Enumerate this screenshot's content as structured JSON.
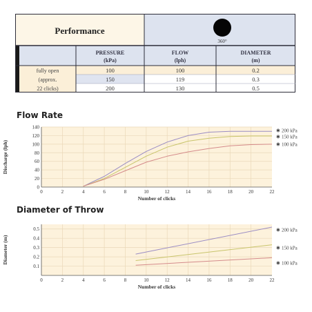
{
  "table": {
    "title": "Performance",
    "angle_label": "360°",
    "headers": [
      {
        "top": "",
        "bottom": ""
      },
      {
        "top": "PRESSURE",
        "bottom": "(kPa)"
      },
      {
        "top": "FLOW",
        "bottom": "(lph)"
      },
      {
        "top": "DIAMETER",
        "bottom": "(m)"
      }
    ],
    "row_label": [
      "fully open",
      "(approx.",
      "22 clicks)"
    ],
    "rows": [
      [
        "100",
        "100",
        "0.2"
      ],
      [
        "150",
        "119",
        "0.3"
      ],
      [
        "200",
        "130",
        "0.5"
      ]
    ],
    "colors": {
      "header_bg": "#dde3ef",
      "row_pale": "#fbefd8",
      "row_light": "#fdf6e7",
      "blue_cell": "#dfe4f0",
      "border": "#2c2c38"
    }
  },
  "chart_data": [
    {
      "type": "line",
      "title": "Flow Rate",
      "xlabel": "Number of clicks",
      "ylabel": "Discharge (lph)",
      "xlim": [
        0,
        22
      ],
      "ylim": [
        0,
        140
      ],
      "xticks": [
        0,
        2,
        4,
        6,
        8,
        10,
        12,
        14,
        16,
        18,
        20,
        22
      ],
      "yticks": [
        0,
        20,
        40,
        60,
        80,
        100,
        120,
        140
      ],
      "grid": true,
      "legend": "right",
      "series": [
        {
          "name": "200 kPa",
          "color": "#9a8cc4",
          "x": [
            4,
            6,
            8,
            10,
            12,
            14,
            16,
            18,
            20,
            22
          ],
          "y": [
            2,
            25,
            55,
            83,
            105,
            120,
            128,
            130,
            130,
            130
          ]
        },
        {
          "name": "150 kPa",
          "color": "#c8c46a",
          "x": [
            4,
            6,
            8,
            10,
            12,
            14,
            16,
            18,
            20,
            22
          ],
          "y": [
            2,
            20,
            46,
            72,
            93,
            107,
            114,
            118,
            119,
            119
          ]
        },
        {
          "name": "100 kPa",
          "color": "#d48a8a",
          "x": [
            4,
            6,
            8,
            10,
            12,
            14,
            16,
            18,
            20,
            22
          ],
          "y": [
            2,
            18,
            38,
            58,
            72,
            82,
            90,
            96,
            99,
            100
          ]
        }
      ]
    },
    {
      "type": "line",
      "title": "Diameter of Throw",
      "xlabel": "Number of clicks",
      "ylabel": "Diameter (m)",
      "xlim": [
        0,
        22
      ],
      "ylim": [
        0,
        0.55
      ],
      "xticks": [
        0,
        2,
        4,
        6,
        8,
        10,
        12,
        14,
        16,
        18,
        20,
        22
      ],
      "xtick_labels": [
        "0",
        "2",
        "4",
        "6",
        "8",
        "10",
        "12",
        "14",
        "16",
        "18",
        "20",
        "22"
      ],
      "yticks": [
        0.1,
        0.2,
        0.3,
        0.4,
        0.5
      ],
      "ytick_labels": [
        "0.1",
        "0.2",
        "0.3",
        "0.4",
        "0.5"
      ],
      "grid": true,
      "legend": "right",
      "series": [
        {
          "name": "200 kPa",
          "color": "#9a8cc4",
          "x": [
            9,
            22
          ],
          "y": [
            0.23,
            0.52
          ]
        },
        {
          "name": "150 kPa",
          "color": "#c8c46a",
          "x": [
            9,
            22
          ],
          "y": [
            0.16,
            0.33
          ]
        },
        {
          "name": "100 kPa",
          "color": "#d48a8a",
          "x": [
            9,
            22
          ],
          "y": [
            0.11,
            0.19
          ]
        }
      ]
    }
  ],
  "colors": {
    "plot_bg": "#fdf2dc",
    "grid": "#ead8b8",
    "axis": "#555555",
    "text": "#333333"
  }
}
